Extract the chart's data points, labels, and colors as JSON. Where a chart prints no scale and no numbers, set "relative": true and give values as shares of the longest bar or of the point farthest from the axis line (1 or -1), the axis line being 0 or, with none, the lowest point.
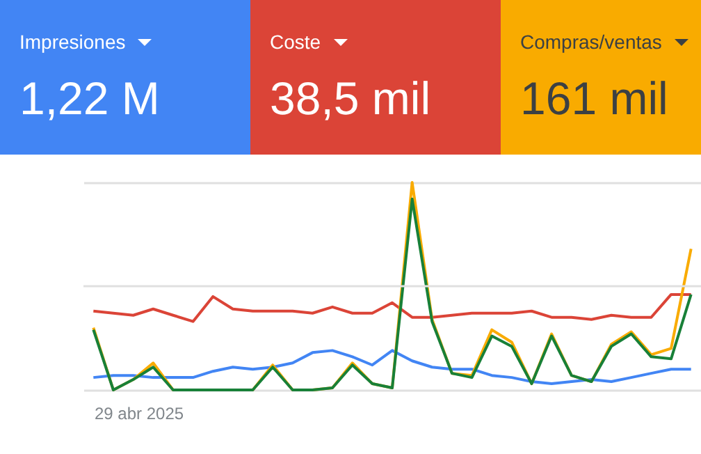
{
  "chart_data": [
    {
      "type": "other",
      "annotations": [
        "Impresiones",
        "1,22 M",
        "Coste",
        "38,5 mil",
        "Compras/ventas",
        "161 mil"
      ]
    },
    {
      "type": "line",
      "relative": true,
      "grid": "y",
      "marker": "none",
      "line_style": "solid",
      "categories": [
        null,
        null,
        null,
        null,
        null,
        null,
        null,
        null,
        null,
        null,
        null,
        null,
        null,
        null,
        null,
        null,
        null,
        null,
        null,
        null,
        null,
        null,
        null,
        null,
        null,
        null,
        null,
        null,
        null,
        null,
        null
      ],
      "annotations": [
        "29 abr 2025"
      ],
      "ref_lines": [
        {
          "axis": "y",
          "value": 0.5,
          "color": "#e0e0e0"
        }
      ],
      "series": [
        {
          "color": "#4285f4",
          "values": [
            0.06,
            0.07,
            0.07,
            0.06,
            0.06,
            0.06,
            0.09,
            0.11,
            0.1,
            0.11,
            0.13,
            0.18,
            0.19,
            0.16,
            0.12,
            0.19,
            0.14,
            0.11,
            0.1,
            0.1,
            0.07,
            0.06,
            0.04,
            0.03,
            0.04,
            0.05,
            0.04,
            0.06,
            0.08,
            0.1,
            0.1
          ]
        },
        {
          "color": "#db4437",
          "values": [
            0.38,
            0.37,
            0.36,
            0.39,
            0.36,
            0.33,
            0.45,
            0.39,
            0.38,
            0.38,
            0.38,
            0.37,
            0.4,
            0.37,
            0.37,
            0.42,
            0.35,
            0.35,
            0.36,
            0.37,
            0.37,
            0.37,
            0.38,
            0.35,
            0.35,
            0.34,
            0.36,
            0.35,
            0.35,
            0.46,
            0.46
          ]
        },
        {
          "color": "#f9ab00",
          "values": [
            0.3,
            0,
            0.05,
            0.13,
            0,
            0,
            0,
            0,
            0,
            0.12,
            0,
            0,
            0.01,
            0.13,
            0.03,
            0.01,
            1,
            0.34,
            0.08,
            0.07,
            0.29,
            0.23,
            0.03,
            0.27,
            0.07,
            0.04,
            0.22,
            0.28,
            0.17,
            0.2,
            0.68
          ]
        },
        {
          "color": "#188038",
          "values": [
            0.29,
            0,
            0.05,
            0.11,
            0,
            0,
            0,
            0,
            0,
            0.11,
            0,
            0,
            0.01,
            0.12,
            0.03,
            0.01,
            0.92,
            0.33,
            0.08,
            0.06,
            0.26,
            0.21,
            0.03,
            0.26,
            0.07,
            0.04,
            0.21,
            0.27,
            0.16,
            0.15,
            0.46
          ]
        }
      ]
    }
  ]
}
